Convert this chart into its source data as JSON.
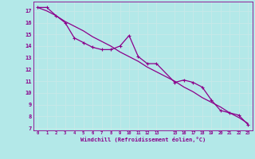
{
  "xlabel": "Windchill (Refroidissement éolien,°C)",
  "bg_color": "#b3e8e8",
  "line_color": "#8b008b",
  "grid_color": "#c8e8e8",
  "xlim": [
    -0.5,
    23.5
  ],
  "ylim": [
    6.8,
    17.8
  ],
  "xticks": [
    0,
    1,
    2,
    3,
    4,
    5,
    6,
    7,
    8,
    9,
    10,
    11,
    12,
    13,
    15,
    16,
    17,
    18,
    19,
    20,
    21,
    22,
    23
  ],
  "yticks": [
    7,
    8,
    9,
    10,
    11,
    12,
    13,
    14,
    15,
    16,
    17
  ],
  "series1_x": [
    0,
    1,
    2,
    3,
    4,
    5,
    6,
    7,
    8,
    9,
    10,
    11,
    12,
    13,
    15,
    16,
    17,
    18,
    19,
    20,
    21,
    22,
    23
  ],
  "series1_y": [
    17.3,
    17.3,
    16.6,
    16.0,
    14.7,
    14.3,
    13.9,
    13.7,
    13.7,
    14.0,
    14.9,
    13.1,
    12.5,
    12.5,
    10.9,
    11.1,
    10.9,
    10.5,
    9.4,
    8.5,
    8.3,
    8.1,
    7.3
  ],
  "series2_x": [
    0,
    1,
    2,
    3,
    4,
    5,
    6,
    7,
    8,
    9,
    10,
    11,
    12,
    13,
    15,
    16,
    17,
    18,
    19,
    20,
    21,
    22,
    23
  ],
  "series2_y": [
    17.3,
    17.0,
    16.6,
    16.1,
    15.7,
    15.3,
    14.8,
    14.4,
    14.0,
    13.5,
    13.1,
    12.7,
    12.2,
    11.8,
    11.0,
    10.5,
    10.1,
    9.6,
    9.2,
    8.8,
    8.3,
    7.9,
    7.4
  ]
}
